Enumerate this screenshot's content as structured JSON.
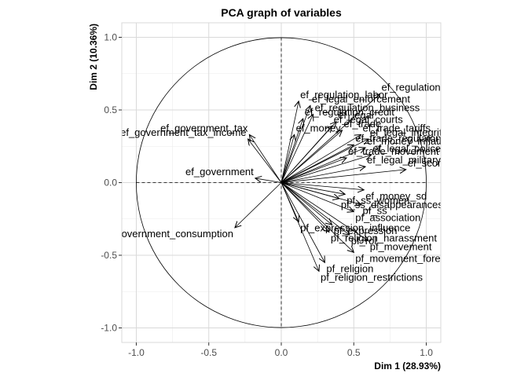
{
  "chart_data": {
    "type": "scatter",
    "subtype": "pca-correlation-circle",
    "title": "PCA graph of variables",
    "xlabel": "Dim 1 (28.93%)",
    "ylabel": "Dim 2 (10.36%)",
    "xlim": [
      -1.1,
      1.1
    ],
    "ylim": [
      -1.1,
      1.1
    ],
    "xticks": [
      -1.0,
      -0.5,
      0.0,
      0.5,
      1.0
    ],
    "yticks": [
      -1.0,
      -0.5,
      0.0,
      0.5,
      1.0
    ],
    "xtick_labels": [
      "-1.0",
      "-0.5",
      "0.0",
      "0.5",
      "1.0"
    ],
    "ytick_labels": [
      "-1.0",
      "-0.5",
      "0.0",
      "0.5",
      "1.0"
    ],
    "grid": true,
    "unit_circle": true,
    "reference_lines": "dashed at x=0 and y=0",
    "arrow_color": "#000000",
    "points": [
      {
        "label": "ef_government_tax",
        "x": -0.22,
        "y": 0.33
      },
      {
        "label": "ef_government_tax_income",
        "x": -0.23,
        "y": 0.3
      },
      {
        "label": "ef_government",
        "x": -0.18,
        "y": 0.03
      },
      {
        "label": "ef_government_consumption",
        "x": -0.32,
        "y": -0.31
      },
      {
        "label": "ef_regulation",
        "x": 0.68,
        "y": 0.61
      },
      {
        "label": "ef_regulation_labor",
        "x": 0.12,
        "y": 0.56
      },
      {
        "label": "ef_legal_enforcement",
        "x": 0.2,
        "y": 0.53
      },
      {
        "label": "ef_regulation_business",
        "x": 0.22,
        "y": 0.47
      },
      {
        "label": "ef_regulation_credit",
        "x": 0.15,
        "y": 0.44
      },
      {
        "label": "ef_legal",
        "x": 0.38,
        "y": 0.42
      },
      {
        "label": "ef_legal_courts",
        "x": 0.35,
        "y": 0.39
      },
      {
        "label": "ef_money",
        "x": 0.09,
        "y": 0.33
      },
      {
        "label": "ef_trade",
        "x": 0.42,
        "y": 0.36
      },
      {
        "label": "ef_trade_tariffs",
        "x": 0.55,
        "y": 0.33
      },
      {
        "label": "ef_legal_integrity",
        "x": 0.6,
        "y": 0.3
      },
      {
        "label": "ef_trade_regulatory",
        "x": 0.5,
        "y": 0.26
      },
      {
        "label": "ef_money_inflation",
        "x": 0.58,
        "y": 0.24
      },
      {
        "label": "ef_legal_police",
        "x": 0.62,
        "y": 0.19
      },
      {
        "label": "ef_trade_movement",
        "x": 0.45,
        "y": 0.17
      },
      {
        "label": "ef_legal_military",
        "x": 0.58,
        "y": 0.11
      },
      {
        "label": "ef_score",
        "x": 0.86,
        "y": 0.09
      },
      {
        "label": "ef_money_sd",
        "x": 0.57,
        "y": -0.05
      },
      {
        "label": "pf_ss_women",
        "x": 0.44,
        "y": -0.08
      },
      {
        "label": "pf_ss_disappearances_killed",
        "x": 0.4,
        "y": -0.11
      },
      {
        "label": "pf_ss",
        "x": 0.55,
        "y": -0.15
      },
      {
        "label": "pf_association",
        "x": 0.5,
        "y": -0.2
      },
      {
        "label": "pf_expression_influence",
        "x": 0.12,
        "y": -0.27
      },
      {
        "label": "pf_expression",
        "x": 0.35,
        "y": -0.29
      },
      {
        "label": "pf_religion_harassment",
        "x": 0.33,
        "y": -0.34
      },
      {
        "label": "pf_rol",
        "x": 0.47,
        "y": -0.36
      },
      {
        "label": "pf_movement",
        "x": 0.6,
        "y": -0.4
      },
      {
        "label": "pf_movement_foreign",
        "x": 0.5,
        "y": -0.48
      },
      {
        "label": "pf_religion",
        "x": 0.3,
        "y": -0.55
      },
      {
        "label": "pf_religion_restrictions",
        "x": 0.26,
        "y": -0.61
      }
    ]
  }
}
